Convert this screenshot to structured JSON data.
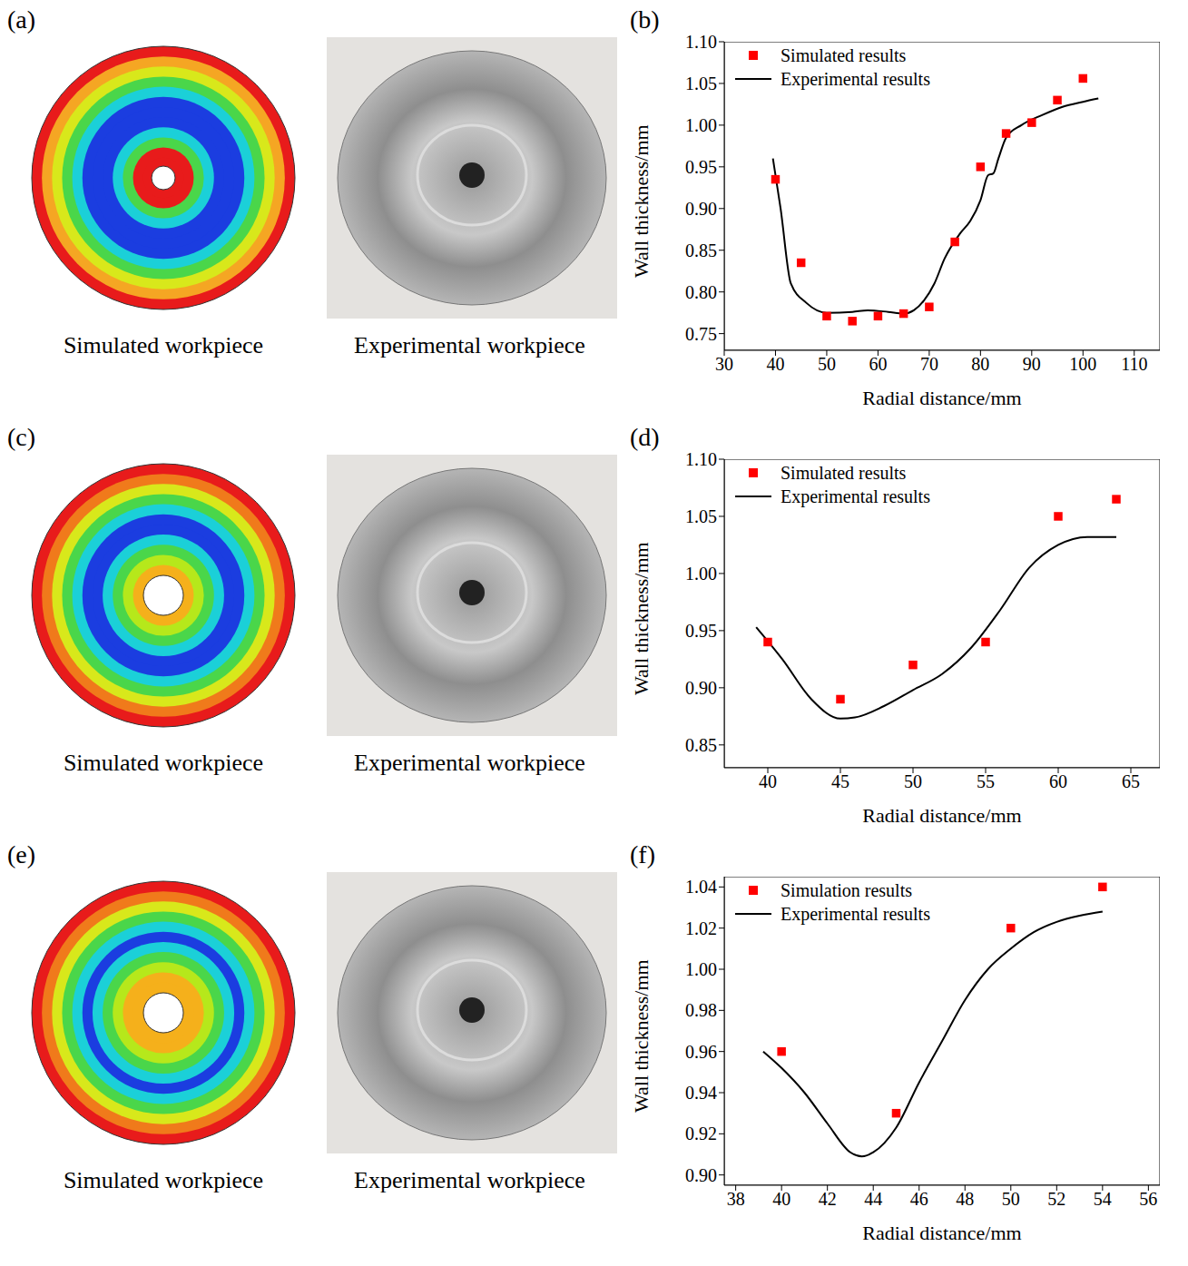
{
  "panels": [
    {
      "label": "(a)",
      "captions": [
        "Simulated workpiece",
        "Experimental workpiece"
      ]
    },
    {
      "label": "(c)",
      "captions": [
        "Simulated workpiece",
        "Experimental workpiece"
      ]
    },
    {
      "label": "(e)",
      "captions": [
        "Simulated workpiece",
        "Experimental workpiece"
      ]
    }
  ],
  "chart_data": [
    {
      "type": "line",
      "panel": "(b)",
      "x_label": "Radial distance/mm",
      "y_label": "Wall thickness/mm",
      "xlim": [
        30,
        115
      ],
      "xticks": [
        30,
        40,
        50,
        60,
        70,
        80,
        90,
        100,
        110
      ],
      "ylim": [
        0.73,
        1.1
      ],
      "yticks": [
        0.75,
        {
          "value": 0.8,
          "label": "0.80"
        },
        0.85,
        {
          "value": 0.9,
          "label": "0.90"
        },
        0.95,
        {
          "value": 1.0,
          "label": "1.00"
        },
        1.05,
        {
          "value": 1.1,
          "label": "1.10"
        }
      ],
      "legend": "upper left",
      "series": [
        {
          "name": "Simulated results",
          "type": "scatter",
          "marker": "square",
          "color": "#ff0000",
          "x": [
            40,
            45,
            50,
            55,
            60,
            65,
            70,
            75,
            80,
            85,
            90,
            95,
            100
          ],
          "values": [
            0.935,
            0.835,
            0.771,
            0.765,
            0.771,
            0.774,
            0.782,
            0.86,
            0.95,
            0.99,
            1.003,
            1.03,
            1.056
          ]
        },
        {
          "name": "Experimental results",
          "type": "line",
          "color": "#000000",
          "x": [
            39.5,
            41,
            43,
            46,
            50,
            55,
            58,
            62,
            65,
            67,
            69,
            71,
            73,
            76,
            78,
            80,
            81.5,
            82.5,
            83.5,
            85,
            88,
            92,
            96,
            100,
            103
          ],
          "values": [
            0.96,
            0.9,
            0.81,
            0.787,
            0.775,
            0.776,
            0.778,
            0.776,
            0.774,
            0.778,
            0.79,
            0.81,
            0.84,
            0.87,
            0.885,
            0.91,
            0.94,
            0.942,
            0.96,
            0.985,
            1.0,
            1.012,
            1.022,
            1.028,
            1.032
          ]
        }
      ]
    },
    {
      "type": "line",
      "panel": "(d)",
      "x_label": "Radial distance/mm",
      "y_label": "Wall thickness/mm",
      "xlim": [
        37,
        67
      ],
      "xticks": [
        40,
        45,
        50,
        55,
        60,
        65
      ],
      "ylim": [
        0.83,
        1.1
      ],
      "yticks": [
        0.85,
        {
          "value": 0.9,
          "label": "0.90"
        },
        0.95,
        {
          "value": 1.0,
          "label": "1.00"
        },
        1.05,
        {
          "value": 1.1,
          "label": "1.10"
        }
      ],
      "legend": "upper left",
      "series": [
        {
          "name": "Simulated results",
          "type": "scatter",
          "marker": "square",
          "color": "#ff0000",
          "x": [
            40,
            45,
            50,
            55,
            60,
            64
          ],
          "values": [
            0.94,
            0.89,
            0.92,
            0.94,
            1.05,
            1.065
          ]
        },
        {
          "name": "Experimental results",
          "type": "line",
          "color": "#000000",
          "x": [
            39.2,
            41,
            43,
            45,
            46,
            48,
            50,
            52,
            54,
            56,
            58,
            60,
            62,
            64
          ],
          "values": [
            0.953,
            0.925,
            0.89,
            0.873,
            0.874,
            0.884,
            0.898,
            0.912,
            0.935,
            0.968,
            1.005,
            1.025,
            1.032,
            1.032
          ]
        }
      ]
    },
    {
      "type": "line",
      "panel": "(f)",
      "x_label": "Radial distance/mm",
      "y_label": "Wall thickness/mm",
      "xlim": [
        37.5,
        56.5
      ],
      "xticks": [
        38,
        40,
        42,
        44,
        46,
        48,
        50,
        52,
        54,
        56
      ],
      "ylim": [
        0.895,
        1.045
      ],
      "yticks": [
        {
          "value": 0.9,
          "label": "0.90"
        },
        0.92,
        0.94,
        0.96,
        0.98,
        {
          "value": 1.0,
          "label": "1.00"
        },
        1.02,
        1.04
      ],
      "legend": "upper left",
      "series": [
        {
          "name": "Simulation results",
          "type": "scatter",
          "marker": "square",
          "color": "#ff0000",
          "x": [
            40,
            45,
            50,
            54
          ],
          "values": [
            0.96,
            0.93,
            1.02,
            1.04
          ]
        },
        {
          "name": "Experimental results",
          "type": "line",
          "color": "#000000",
          "x": [
            39.2,
            40,
            41,
            42,
            43,
            43.5,
            44,
            45,
            46,
            47,
            48,
            49,
            50,
            51,
            52,
            53,
            54
          ],
          "values": [
            0.96,
            0.952,
            0.94,
            0.925,
            0.911,
            0.909,
            0.911,
            0.923,
            0.945,
            0.965,
            0.985,
            1.0,
            1.01,
            1.018,
            1.023,
            1.026,
            1.028
          ]
        }
      ]
    }
  ]
}
